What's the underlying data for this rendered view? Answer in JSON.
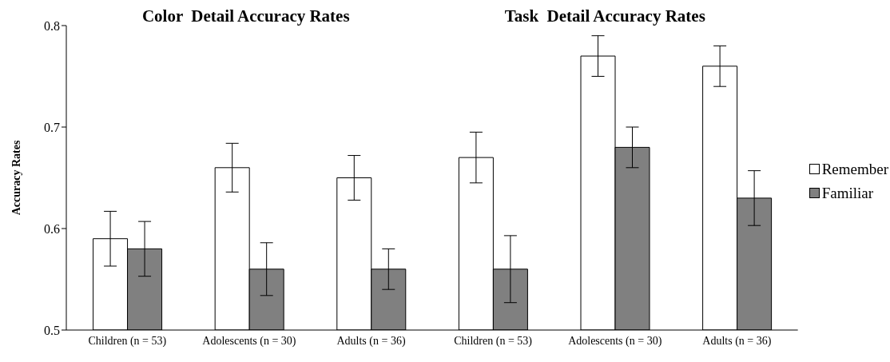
{
  "chart_data": {
    "type": "bar",
    "ylabel": "Accuracy Rates",
    "annotations": [
      "Color  Detail Accuracy Rates",
      "Task  Detail Accuracy Rates"
    ],
    "categories": [
      "Children (n = 53)",
      "Adolescents (n = 30)",
      "Adults (n = 36)",
      "Children (n = 53)",
      "Adolescents (n = 30)",
      "Adults (n = 36)"
    ],
    "series": [
      {
        "name": "Remember",
        "color": "#ffffff",
        "values": [
          0.59,
          0.66,
          0.65,
          0.67,
          0.77,
          0.76
        ],
        "errors": [
          0.027,
          0.024,
          0.022,
          0.025,
          0.02,
          0.02
        ]
      },
      {
        "name": "Familiar",
        "color": "#808080",
        "values": [
          0.58,
          0.56,
          0.56,
          0.56,
          0.68,
          0.63
        ],
        "errors": [
          0.027,
          0.026,
          0.02,
          0.033,
          0.02,
          0.027
        ]
      }
    ],
    "ylim": [
      0.5,
      0.8
    ],
    "yticks": [
      0.5,
      0.6,
      0.7,
      0.8
    ],
    "grid": false,
    "legend": "right"
  }
}
